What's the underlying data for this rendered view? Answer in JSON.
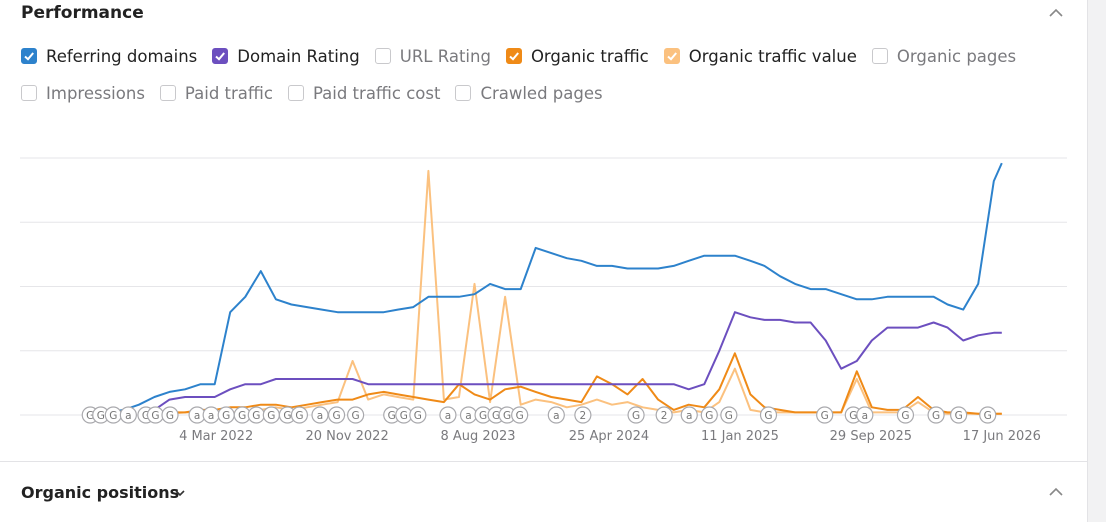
{
  "panel": {
    "title": "Performance",
    "unchecked_metrics": [
      "URL Rating",
      "Organic pages",
      "Impressions",
      "Paid traffic",
      "Paid traffic cost",
      "Crawled pages"
    ]
  },
  "chart_data": {
    "type": "line",
    "x": [
      "2021-08-01",
      "2021-09-01",
      "2021-10-01",
      "2021-11-01",
      "2021-12-01",
      "2022-01-01",
      "2022-02-01",
      "2022-03-01",
      "2022-04-01",
      "2022-05-01",
      "2022-06-01",
      "2022-07-01",
      "2022-08-01",
      "2022-09-01",
      "2022-10-01",
      "2022-11-01",
      "2022-12-01",
      "2023-01-01",
      "2023-02-01",
      "2023-03-01",
      "2023-04-01",
      "2023-05-01",
      "2023-06-01",
      "2023-07-01",
      "2023-08-01",
      "2023-09-01",
      "2023-10-01",
      "2023-11-01",
      "2023-12-01",
      "2024-01-01",
      "2024-02-01",
      "2024-03-01",
      "2024-04-01",
      "2024-05-01",
      "2024-06-01",
      "2024-07-01",
      "2024-08-01",
      "2024-09-01",
      "2024-10-01",
      "2024-11-01",
      "2024-12-01",
      "2025-01-01",
      "2025-02-01",
      "2025-03-01",
      "2025-04-01",
      "2025-05-01",
      "2025-06-01",
      "2025-07-01",
      "2025-08-01",
      "2025-09-01",
      "2025-10-01",
      "2025-11-01",
      "2025-12-01",
      "2026-01-01",
      "2026-02-01",
      "2026-03-01",
      "2026-04-01",
      "2026-05-01",
      "2026-06-01",
      "2026-06-17"
    ],
    "series": [
      {
        "name": "Organic traffic value",
        "color": "#fbc17f",
        "values": [
          null,
          null,
          0.5,
          0.5,
          0.5,
          1,
          1,
          1,
          1,
          1,
          2,
          3,
          2,
          3,
          4,
          5,
          21,
          6,
          8,
          7,
          6,
          95,
          6,
          7,
          51,
          5,
          46,
          4,
          6,
          5,
          3,
          4,
          6,
          4,
          5,
          3,
          2,
          1,
          2,
          1,
          5,
          18,
          2,
          1,
          1,
          1,
          1,
          1,
          1,
          14,
          1,
          1,
          1,
          5,
          1,
          0.5,
          0.5,
          0.5,
          0.5,
          0.5
        ]
      },
      {
        "name": "Organic traffic",
        "color": "#ef8a17",
        "values": [
          null,
          null,
          0.5,
          1,
          1,
          1,
          2,
          2,
          3,
          3,
          4,
          4,
          3,
          4,
          5,
          6,
          6,
          8,
          9,
          8,
          7,
          6,
          5,
          12,
          8,
          6,
          10,
          11,
          9,
          7,
          6,
          5,
          15,
          12,
          8,
          14,
          6,
          2,
          4,
          3,
          10,
          24,
          8,
          3,
          2,
          1,
          1,
          1,
          1,
          17,
          3,
          2,
          2,
          7,
          2,
          1,
          1,
          0.5,
          0.5,
          0.5
        ]
      },
      {
        "name": "Domain Rating",
        "color": "#6c4fbf",
        "values": [
          null,
          null,
          1,
          2,
          6,
          7,
          7,
          7,
          10,
          12,
          12,
          14,
          14,
          14,
          14,
          14,
          14,
          12,
          12,
          12,
          12,
          12,
          12,
          12,
          12,
          12,
          12,
          12,
          12,
          12,
          12,
          12,
          12,
          12,
          12,
          12,
          12,
          12,
          10,
          12,
          25,
          40,
          38,
          37,
          37,
          36,
          36,
          29,
          18,
          21,
          29,
          34,
          34,
          34,
          36,
          34,
          29,
          31,
          32,
          32
        ]
      },
      {
        "name": "Referring domains",
        "color": "#2d82cc",
        "values": [
          1,
          2,
          4,
          7,
          9,
          10,
          12,
          12,
          40,
          46,
          56,
          45,
          43,
          42,
          41,
          40,
          40,
          40,
          40,
          41,
          42,
          46,
          46,
          46,
          47,
          51,
          49,
          49,
          65,
          63,
          61,
          60,
          58,
          58,
          57,
          57,
          57,
          58,
          60,
          62,
          62,
          62,
          60,
          58,
          54,
          51,
          49,
          49,
          47,
          45,
          45,
          46,
          46,
          46,
          46,
          43,
          41,
          51,
          91,
          98
        ]
      }
    ],
    "legend_order": [
      3,
      2,
      "URL Rating",
      1,
      0,
      "Organic pages",
      "Impressions",
      "Paid traffic",
      "Paid traffic cost",
      "Crawled pages"
    ],
    "xlim": [
      "2021-02-06",
      "2026-10-25"
    ],
    "xticks": [
      {
        "value": "2022-03-04",
        "label": "4 Mar 2022"
      },
      {
        "value": "2022-11-20",
        "label": "20 Nov 2022"
      },
      {
        "value": "2023-08-08",
        "label": "8 Aug 2023"
      },
      {
        "value": "2024-04-25",
        "label": "25 Apr 2024"
      },
      {
        "value": "2025-01-11",
        "label": "11 Jan 2025"
      },
      {
        "value": "2025-09-29",
        "label": "29 Sep 2025"
      },
      {
        "value": "2026-06-17",
        "label": "17 Jun 2026"
      }
    ],
    "ylim": [
      0,
      100
    ],
    "yticks": [
      0,
      25,
      50,
      75,
      100
    ],
    "grid": true,
    "annotations": [
      {
        "x": "2021-06-26",
        "label": "G"
      },
      {
        "x": "2021-07-17",
        "label": "G"
      },
      {
        "x": "2021-08-11",
        "label": "G"
      },
      {
        "x": "2021-09-10",
        "label": "a"
      },
      {
        "x": "2021-10-15",
        "label": "G"
      },
      {
        "x": "2021-11-03",
        "label": "G"
      },
      {
        "x": "2021-12-02",
        "label": "G"
      },
      {
        "x": "2022-01-25",
        "label": "a"
      },
      {
        "x": "2022-02-22",
        "label": "a"
      },
      {
        "x": "2022-03-24",
        "label": "G"
      },
      {
        "x": "2022-04-25",
        "label": "G"
      },
      {
        "x": "2022-05-23",
        "label": "G"
      },
      {
        "x": "2022-06-22",
        "label": "G"
      },
      {
        "x": "2022-07-24",
        "label": "G"
      },
      {
        "x": "2022-08-17",
        "label": "G"
      },
      {
        "x": "2022-09-27",
        "label": "a"
      },
      {
        "x": "2022-10-30",
        "label": "G"
      },
      {
        "x": "2022-12-07",
        "label": "G"
      },
      {
        "x": "2023-02-17",
        "label": "G"
      },
      {
        "x": "2023-03-13",
        "label": "G"
      },
      {
        "x": "2023-04-10",
        "label": "G"
      },
      {
        "x": "2023-06-09",
        "label": "a"
      },
      {
        "x": "2023-07-20",
        "label": "a"
      },
      {
        "x": "2023-08-18",
        "label": "G"
      },
      {
        "x": "2023-09-13",
        "label": "G"
      },
      {
        "x": "2023-10-05",
        "label": "G"
      },
      {
        "x": "2023-10-30",
        "label": "G"
      },
      {
        "x": "2024-01-11",
        "label": "a"
      },
      {
        "x": "2024-03-04",
        "label": "2"
      },
      {
        "x": "2024-06-18",
        "label": "G"
      },
      {
        "x": "2024-08-13",
        "label": "2"
      },
      {
        "x": "2024-10-02",
        "label": "a"
      },
      {
        "x": "2024-11-11",
        "label": "G"
      },
      {
        "x": "2024-12-20",
        "label": "G"
      },
      {
        "x": "2025-03-09",
        "label": "G"
      },
      {
        "x": "2025-06-29",
        "label": "G"
      },
      {
        "x": "2025-08-25",
        "label": "G"
      },
      {
        "x": "2025-09-17",
        "label": "a"
      },
      {
        "x": "2025-12-07",
        "label": "G"
      },
      {
        "x": "2026-02-06",
        "label": "G"
      },
      {
        "x": "2026-03-23",
        "label": "G"
      },
      {
        "x": "2026-05-20",
        "label": "G"
      }
    ]
  },
  "footer": {
    "title": "Organic positions"
  }
}
